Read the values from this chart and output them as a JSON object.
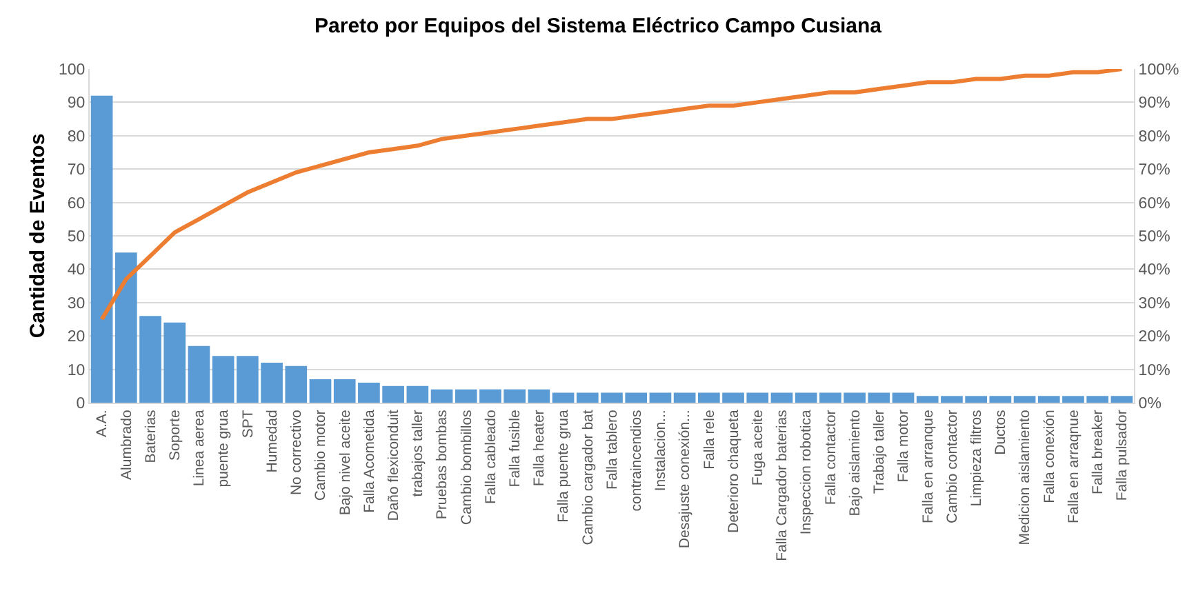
{
  "chart_data": {
    "type": "bar",
    "title": "Pareto por Equipos del Sistema Eléctrico Campo Cusiana",
    "ylabel": "Cantidad de Eventos",
    "categories": [
      "A.A.",
      "Alumbrado",
      "Baterias",
      "Soporte",
      "Linea aerea",
      "puente grua",
      "SPT",
      "Humedad",
      "No correctivo",
      "Cambio motor",
      "Bajo nivel aceite",
      "Falla Acometida",
      "Daño flexiconduit",
      "trabajos taller",
      "Pruebas bombas",
      "Cambio bombillos",
      "Falla cableado",
      "Falla fusible",
      "Falla heater",
      "Falla puente grua",
      "Cambio cargador bat",
      "Falla tablero",
      "contraincendios",
      "Instalacion...",
      "Desajuste conexión...",
      "Falla rele",
      "Deterioro chaqueta",
      "Fuga aceite",
      "Falla Cargador baterias",
      "Inspeccion robotica",
      "Falla contactor",
      "Bajo aislamiento",
      "Trabajo taller",
      "Falla motor",
      "Falla en arranque",
      "Cambio contactor",
      "Limpieza filtros",
      "Ductos",
      "Medicion aislamiento",
      "Falla conexión",
      "Falla en arraqnue",
      "Falla breaker",
      "Falla pulsador"
    ],
    "series": [
      {
        "color": "#5b9bd5",
        "values": [
          92,
          45,
          26,
          24,
          17,
          14,
          14,
          12,
          11,
          7,
          7,
          6,
          5,
          5,
          4,
          4,
          4,
          4,
          4,
          3,
          3,
          3,
          3,
          3,
          3,
          3,
          3,
          3,
          3,
          3,
          3,
          3,
          3,
          3,
          2,
          2,
          2,
          2,
          2,
          2,
          2,
          2,
          2
        ]
      },
      {
        "type": "line",
        "axis": "y2",
        "color": "#ed7d31",
        "values": [
          25,
          37,
          44,
          51,
          55,
          59,
          63,
          66,
          69,
          71,
          73,
          75,
          76,
          77,
          79,
          80,
          81,
          82,
          83,
          84,
          85,
          85,
          86,
          87,
          88,
          89,
          89,
          90,
          91,
          92,
          93,
          93,
          94,
          95,
          96,
          96,
          97,
          97,
          98,
          98,
          99,
          99,
          100
        ]
      }
    ],
    "ylim": [
      0,
      100
    ],
    "yticks": [
      0,
      10,
      20,
      30,
      40,
      50,
      60,
      70,
      80,
      90,
      100
    ],
    "y2lim": [
      0,
      100
    ],
    "y2ticks": [
      {
        "value": 0,
        "label": "0%"
      },
      {
        "value": 10,
        "label": "10%"
      },
      {
        "value": 20,
        "label": "20%"
      },
      {
        "value": 30,
        "label": "30%"
      },
      {
        "value": 40,
        "label": "40%"
      },
      {
        "value": 50,
        "label": "50%"
      },
      {
        "value": 60,
        "label": "60%"
      },
      {
        "value": 70,
        "label": "70%"
      },
      {
        "value": 80,
        "label": "80%"
      },
      {
        "value": 90,
        "label": "90%"
      },
      {
        "value": 100,
        "label": "100%"
      }
    ],
    "grid": "y",
    "marker": "none",
    "line_style": "solid"
  }
}
